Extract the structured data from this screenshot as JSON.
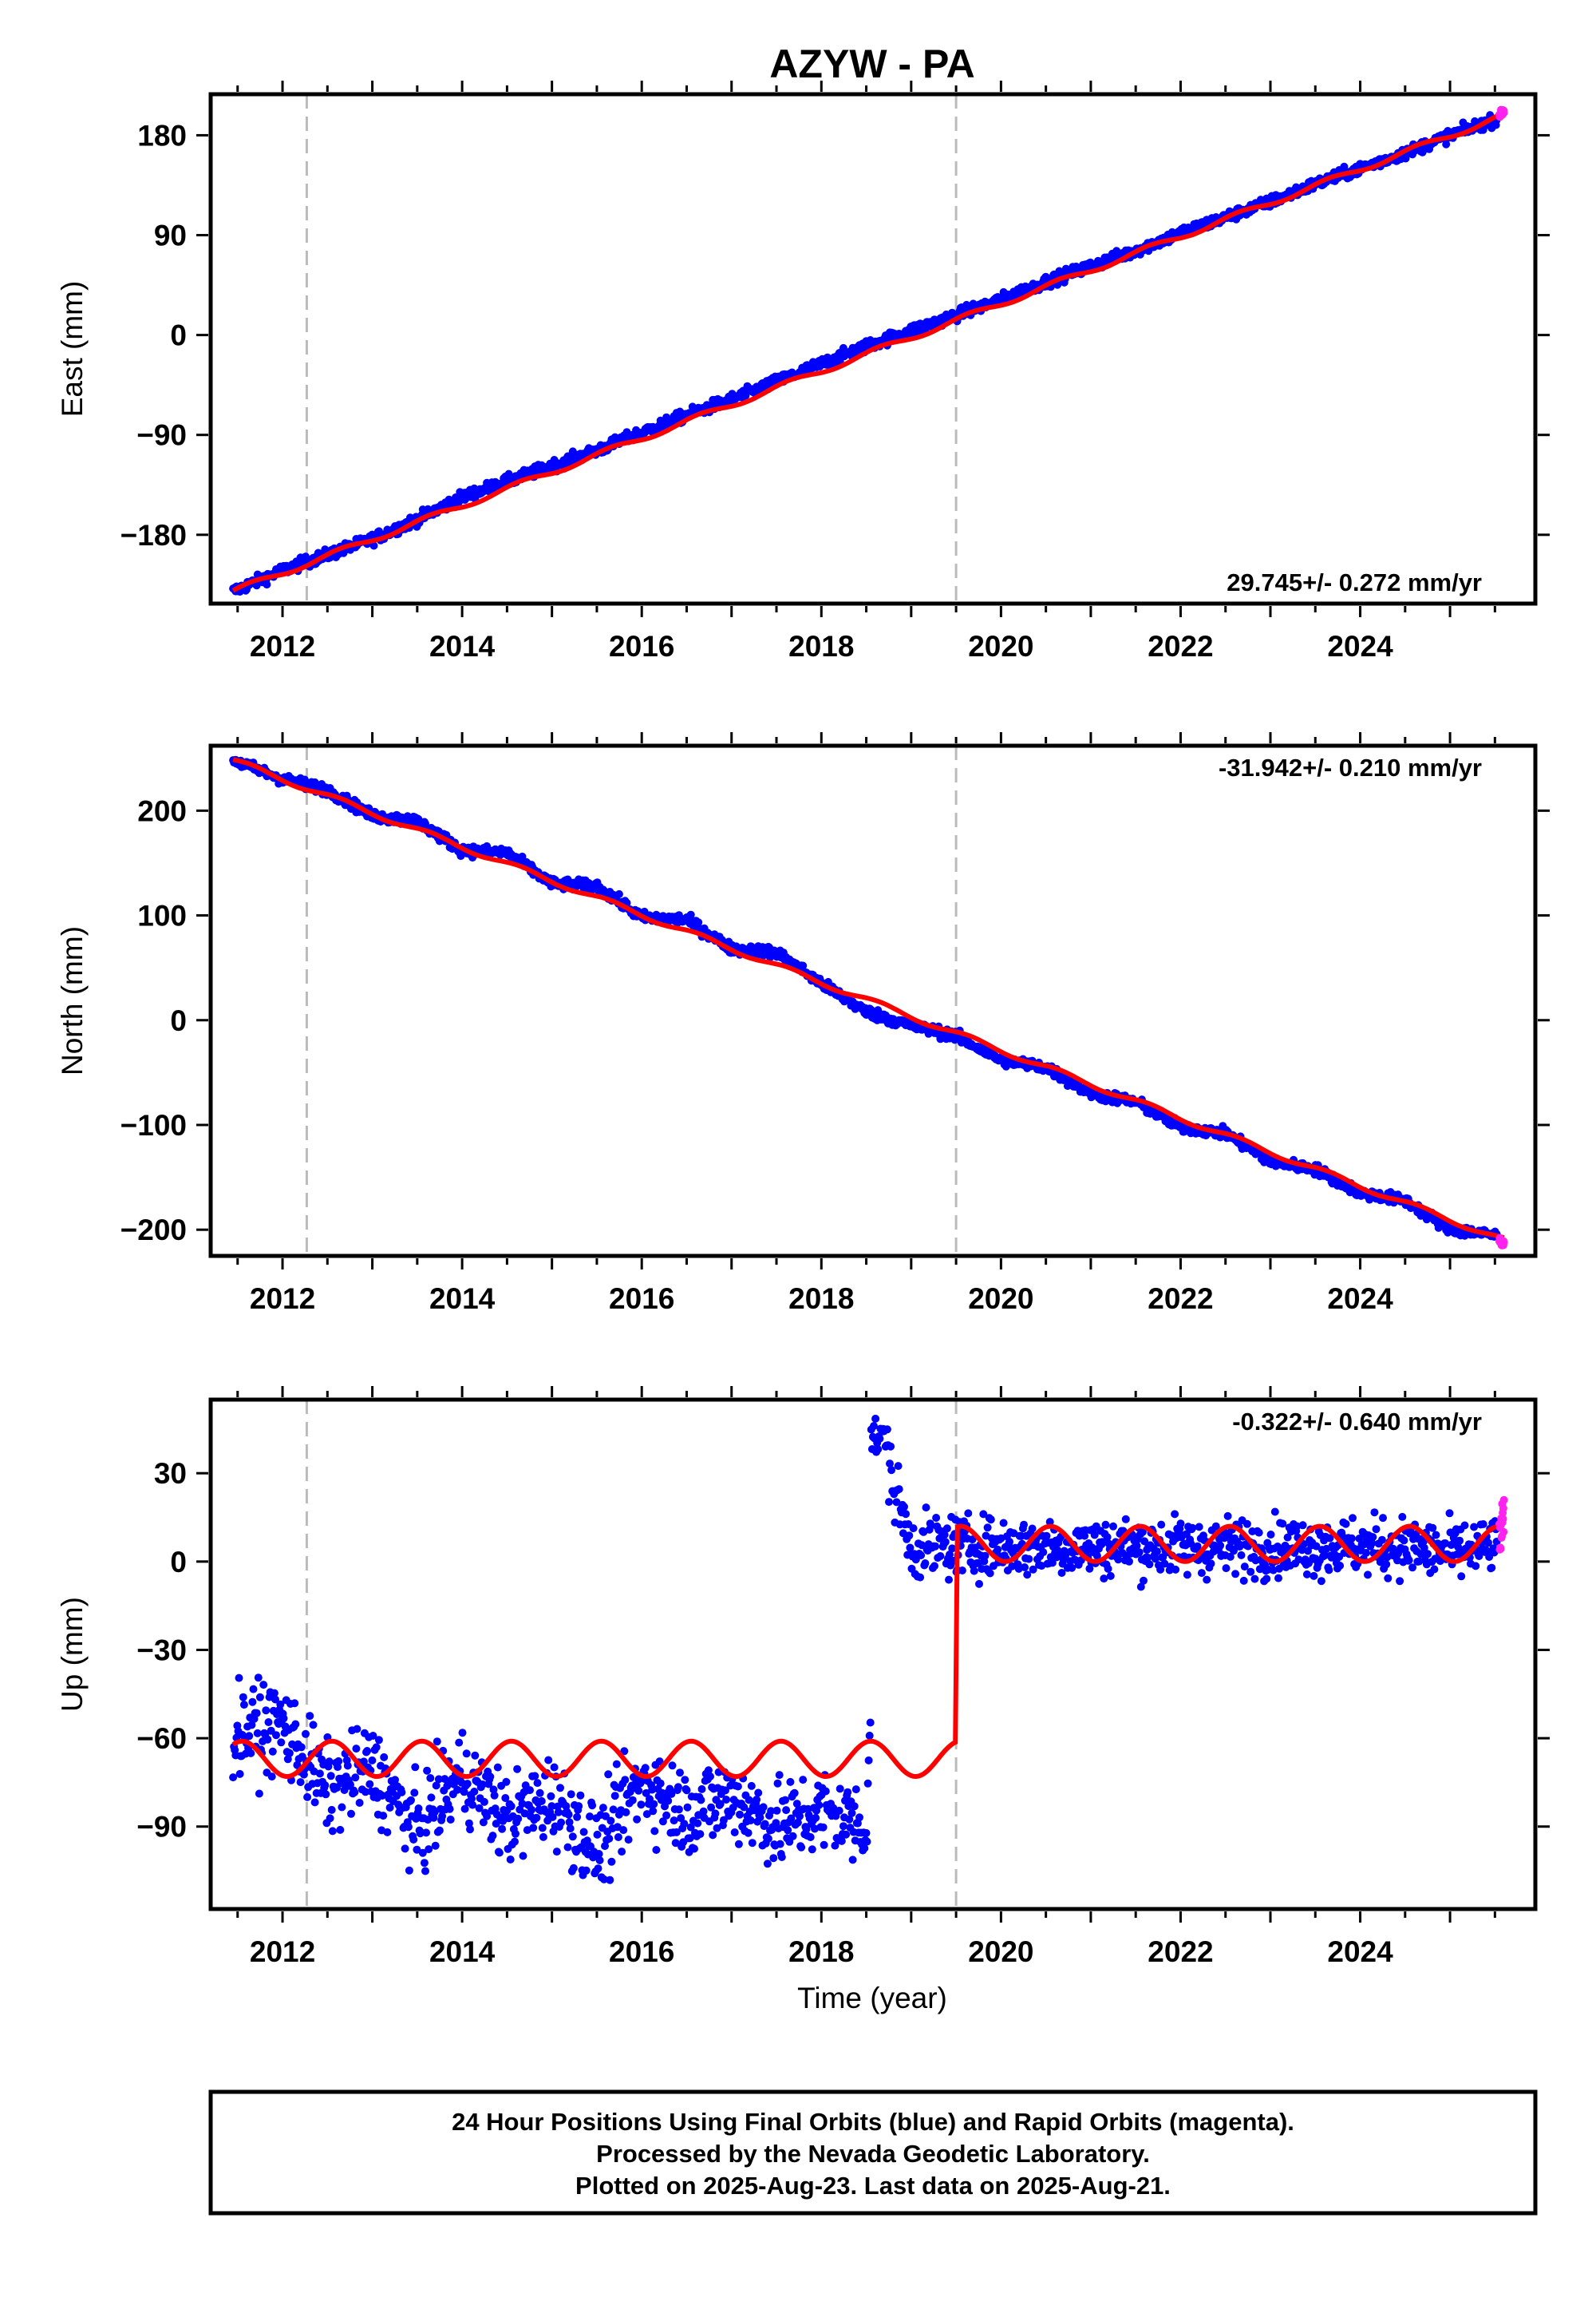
{
  "title": "AZYW - PA",
  "colors": {
    "final_points": "#0000ff",
    "rapid_points": "#ff22ee",
    "model_line": "#ff0000",
    "event_lines": "#bbbbbb",
    "frame": "#000000"
  },
  "x_axis": {
    "label": "Time (year)",
    "range": [
      2011.2,
      2025.95
    ],
    "ticks": [
      2012,
      2014,
      2016,
      2018,
      2020,
      2022,
      2024
    ],
    "minor_step": 0.5
  },
  "event_lines": [
    2012.27,
    2019.5
  ],
  "footer": {
    "lines": [
      "24 Hour Positions Using Final Orbits (blue) and Rapid Orbits (magenta).",
      "Processed by the Nevada Geodetic Laboratory.",
      "Plotted on 2025-Aug-23. Last data on 2025-Aug-21."
    ]
  },
  "chart_data": [
    {
      "type": "scatter",
      "component": "east",
      "ylabel": "East (mm)",
      "ylim": [
        -242,
        217
      ],
      "yticks": [
        -180,
        -90,
        0,
        90,
        180
      ],
      "ytick_labels": [
        "−180",
        "−90",
        "0",
        "90",
        "180"
      ],
      "rate_text": "29.745+/- 0.272 mm/yr",
      "rate_position": "bottom-right",
      "data_range": [
        2011.45,
        2025.6
      ],
      "series": [
        {
          "name": "Final Orbits",
          "color": "#0000ff",
          "x": [
            2011.45,
            2012.0,
            2012.5,
            2013.0,
            2013.5,
            2014.0,
            2014.5,
            2015.0,
            2015.5,
            2016.0,
            2016.5,
            2017.0,
            2017.5,
            2018.0,
            2018.5,
            2019.0,
            2019.5,
            2020.0,
            2020.5,
            2021.0,
            2021.5,
            2022.0,
            2022.5,
            2023.0,
            2023.5,
            2024.0,
            2024.5,
            2025.0,
            2025.5
          ],
          "y": [
            -231,
            -212,
            -198,
            -184,
            -166,
            -146,
            -132,
            -118,
            -104,
            -88,
            -72,
            -58,
            -42,
            -26,
            -10,
            4,
            18,
            32,
            48,
            62,
            76,
            92,
            106,
            120,
            136,
            150,
            164,
            180,
            194
          ]
        },
        {
          "name": "Rapid Orbits",
          "color": "#ff22ee",
          "x": [
            2025.55,
            2025.6
          ],
          "y": [
            198,
            202
          ]
        }
      ],
      "model": {
        "x": [
          2011.45,
          2025.6
        ],
        "y": [
          -231,
          198
        ]
      }
    },
    {
      "type": "scatter",
      "component": "north",
      "ylabel": "North (mm)",
      "ylim": [
        -225,
        262
      ],
      "yticks": [
        -200,
        -100,
        0,
        100,
        200
      ],
      "ytick_labels": [
        "−200",
        "−100",
        "0",
        "100",
        "200"
      ],
      "rate_text": "-31.942+/- 0.210 mm/yr",
      "rate_position": "top-right",
      "data_range": [
        2011.45,
        2025.6
      ],
      "series": [
        {
          "name": "Final Orbits",
          "color": "#0000ff",
          "x": [
            2011.45,
            2012.0,
            2012.5,
            2013.0,
            2013.5,
            2014.0,
            2014.5,
            2015.0,
            2015.5,
            2016.0,
            2016.5,
            2017.0,
            2017.5,
            2018.0,
            2018.5,
            2019.0,
            2019.5,
            2020.0,
            2020.5,
            2021.0,
            2021.5,
            2022.0,
            2022.5,
            2023.0,
            2023.5,
            2024.0,
            2024.5,
            2025.0,
            2025.5
          ],
          "y": [
            248,
            230,
            220,
            195,
            190,
            162,
            160,
            130,
            128,
            98,
            96,
            68,
            65,
            35,
            8,
            -5,
            -15,
            -38,
            -45,
            -70,
            -78,
            -102,
            -108,
            -135,
            -142,
            -165,
            -172,
            -200,
            -205
          ]
        },
        {
          "name": "Rapid Orbits",
          "color": "#ff22ee",
          "x": [
            2025.55,
            2025.6
          ],
          "y": [
            -210,
            -214
          ]
        }
      ],
      "model": {
        "x": [
          2011.45,
          2025.6
        ],
        "y": [
          248,
          -210
        ]
      }
    },
    {
      "type": "scatter",
      "component": "up",
      "ylabel": "Up (mm)",
      "ylim": [
        -118,
        55
      ],
      "yticks": [
        -90,
        -60,
        -30,
        0,
        30
      ],
      "ytick_labels": [
        "−90",
        "−60",
        "−30",
        "0",
        "30"
      ],
      "rate_text": "-0.322+/- 0.640 mm/yr",
      "rate_position": "top-right",
      "data_range": [
        2011.45,
        2025.6
      ],
      "series": [
        {
          "name": "Final Orbits",
          "color": "#0000ff",
          "x": [
            2011.5,
            2012.0,
            2012.5,
            2013.0,
            2013.5,
            2014.0,
            2014.5,
            2015.0,
            2015.5,
            2016.0,
            2016.5,
            2017.0,
            2017.5,
            2018.0,
            2018.5,
            2018.65,
            2019.0,
            2019.5,
            2020.0,
            2020.5,
            2021.0,
            2021.5,
            2022.0,
            2022.5,
            2023.0,
            2023.5,
            2024.0,
            2024.5,
            2025.0,
            2025.5
          ],
          "y": [
            -58,
            -55,
            -78,
            -70,
            -92,
            -72,
            -88,
            -80,
            -98,
            -75,
            -85,
            -80,
            -90,
            -85,
            -90,
            42,
            5,
            5,
            5,
            5,
            5,
            5,
            5,
            5,
            5,
            5,
            5,
            5,
            3,
            5
          ]
        },
        {
          "name": "Rapid Orbits",
          "color": "#ff22ee",
          "x": [
            2025.55,
            2025.6
          ],
          "y": [
            8,
            14
          ]
        }
      ],
      "model": {
        "offset_before": -67,
        "offset_after": 6,
        "step_epoch": 2019.5,
        "seasonal_amplitude": 6
      }
    }
  ]
}
